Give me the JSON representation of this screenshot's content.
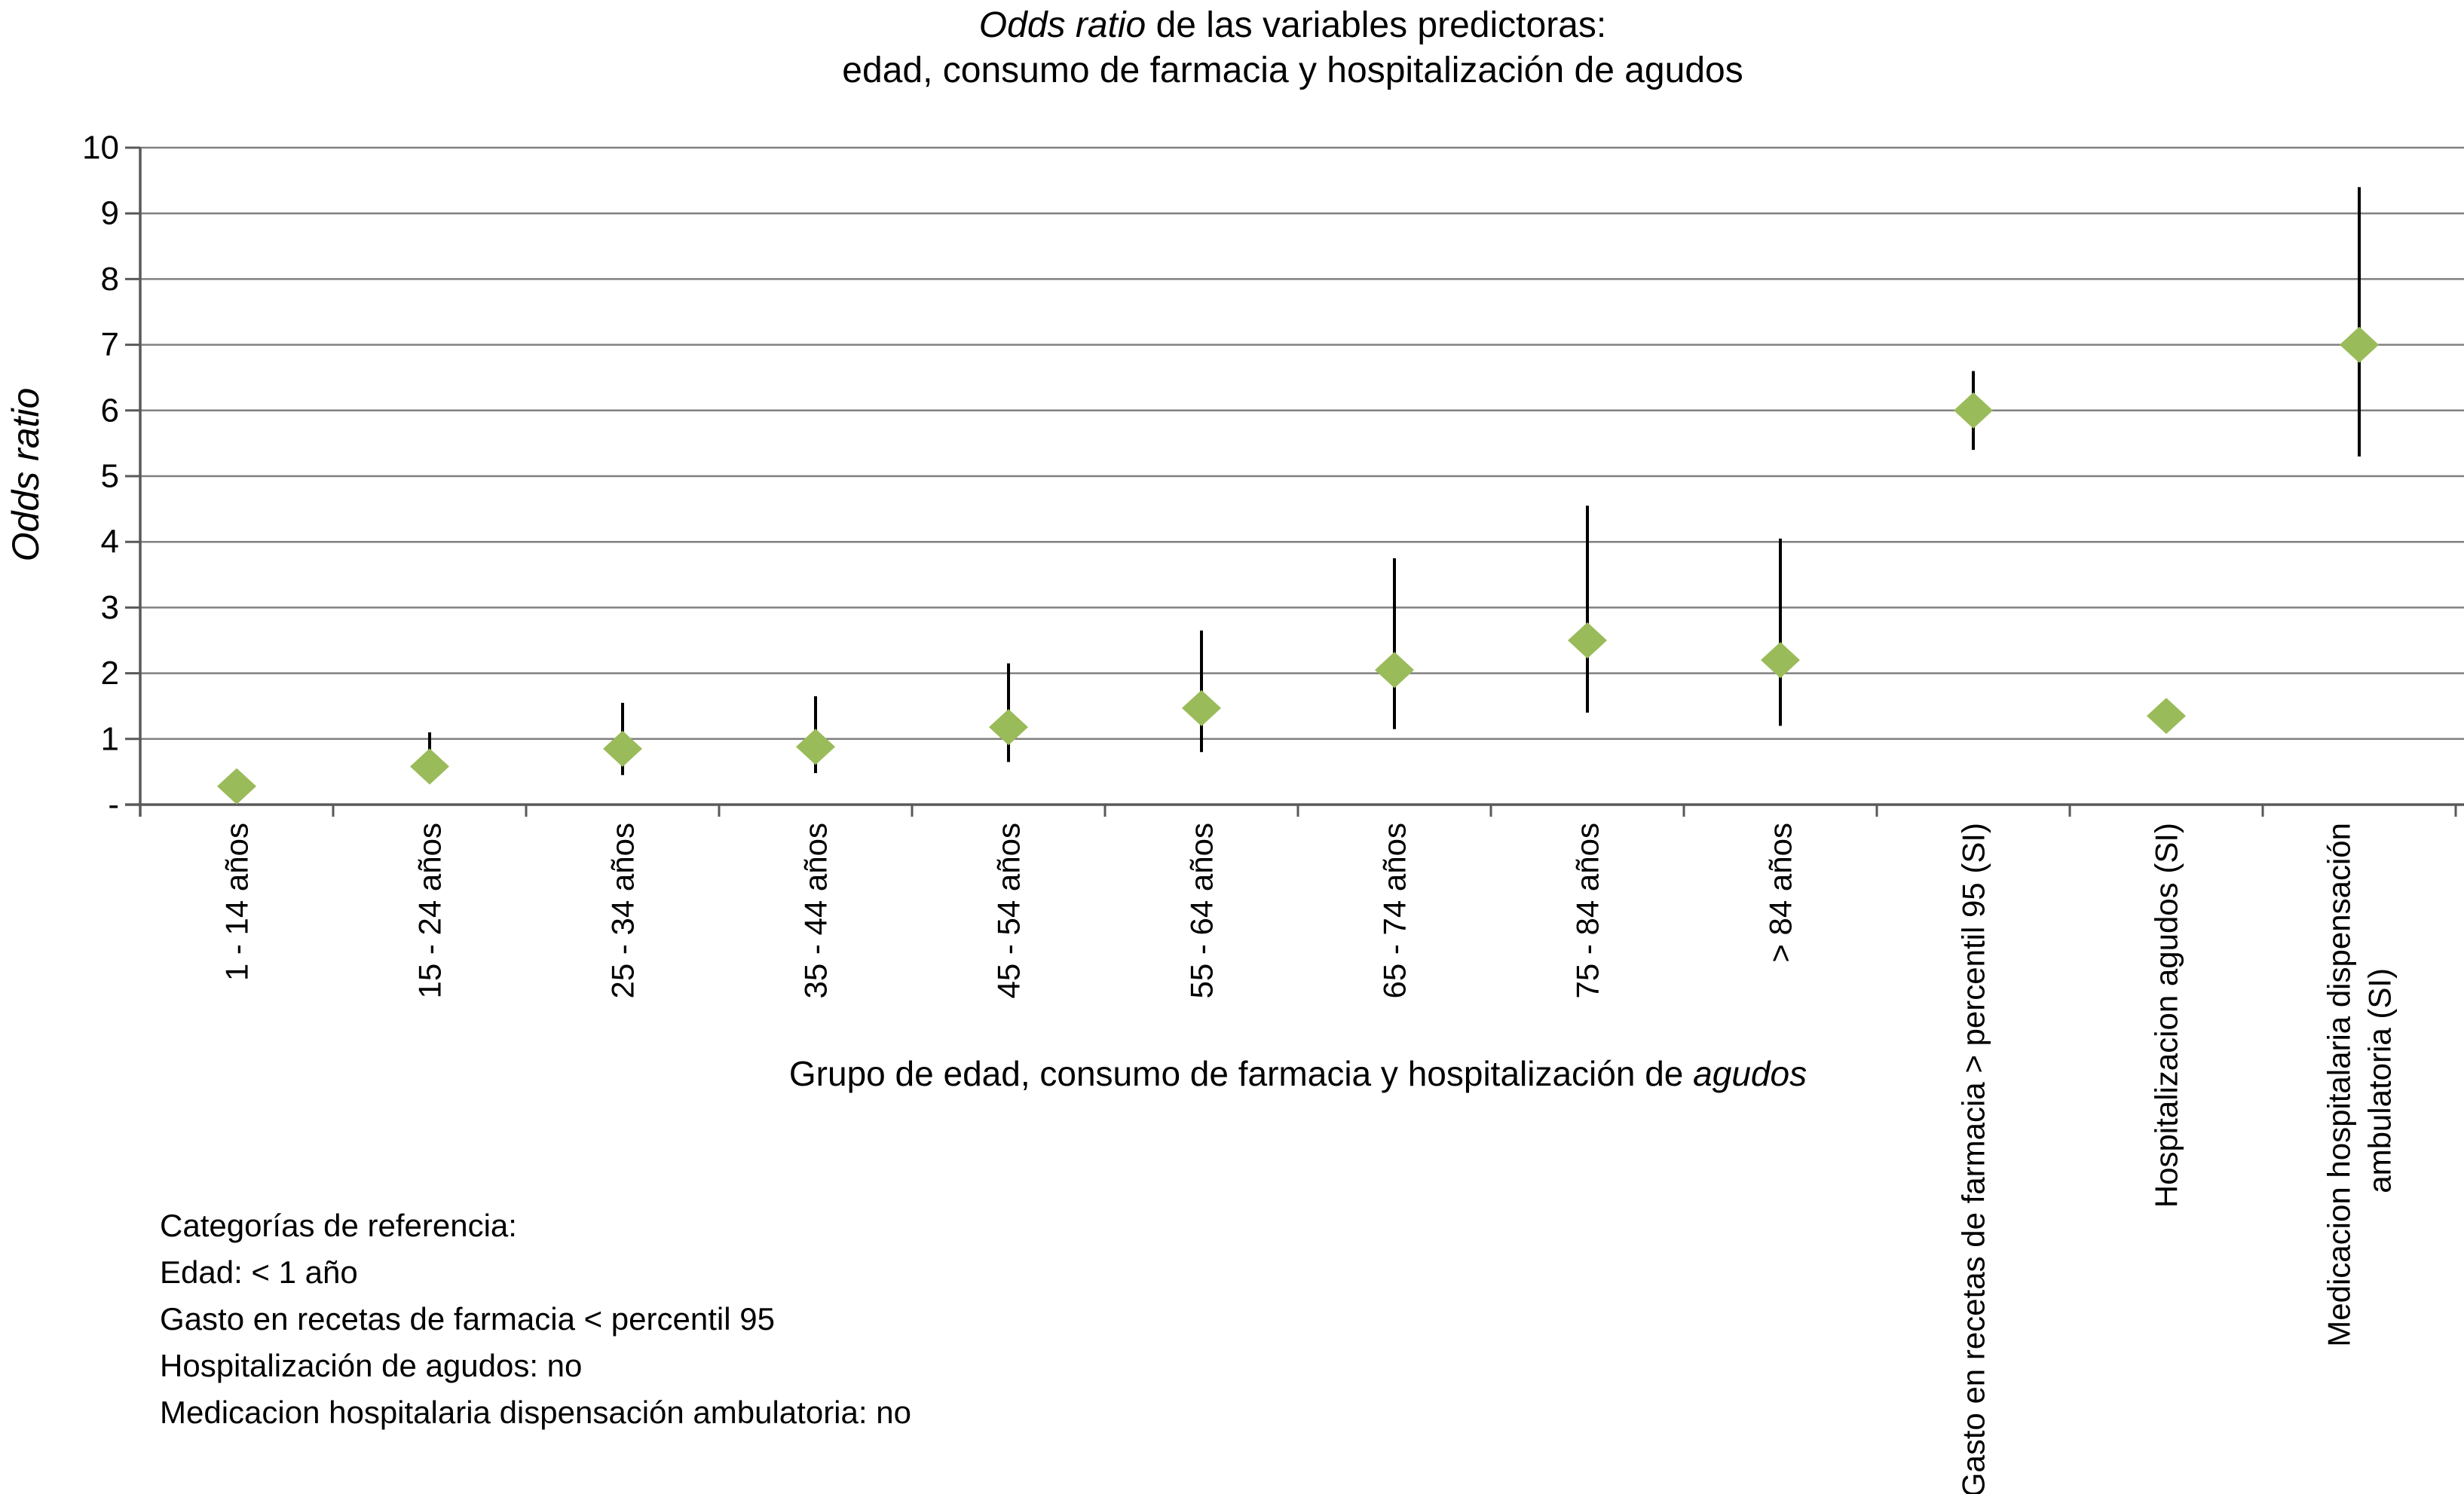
{
  "figure": {
    "title_line1_italic": "Odds ratio",
    "title_line1_rest": " de las variables predictoras:",
    "title_line2": "edad, consumo de farmacia y hospitalización de agudos",
    "y_axis_title": "Odds ratio",
    "x_axis_title_regular": "Grupo de edad, consumo de farmacia y hospitalización de ",
    "x_axis_title_italic": "agudos",
    "footnote_lines": [
      "Categorías de referencia:",
      "Edad: < 1 año",
      "Gasto en recetas de farmacia < percentil 95",
      "Hospitalización de agudos: no",
      "Medicacion hospitalaria dispensación ambulatoria: no"
    ]
  },
  "chart_data": {
    "type": "scatter",
    "marker": "diamond",
    "marker_color": "#9ABB59",
    "error_bar_color": "#000000",
    "gridline_color": "#808080",
    "axis_color": "#595959",
    "title": "Odds ratio de las variables predictoras: edad, consumo de farmacia y hospitalización de agudos",
    "xlabel": "Grupo de edad, consumo de farmacia y hospitalización de agudos",
    "ylabel": "Odds ratio",
    "ylim": [
      0,
      10
    ],
    "grid": true,
    "y_tick_values": [
      10,
      9,
      8,
      7,
      6,
      5,
      4,
      3,
      2,
      1,
      0
    ],
    "y_tick_labels": [
      "10",
      "9",
      "8",
      "7",
      "6",
      "5",
      "4",
      "3",
      "2",
      "1",
      "-"
    ],
    "categories": [
      "1 - 14 años",
      "15 - 24 años",
      "25 - 34 años",
      "35 - 44 años",
      "45 - 54 años",
      "55 - 64 años",
      "65 - 74 años",
      "75 - 84 años",
      "> 84 años",
      "Gasto en recetas de farmacia > percentil 95 (SI)",
      "Hospitalizacion agudos (SI)",
      "Medicacion hospitalaria dispensación\nambulatoria (SI)"
    ],
    "series": [
      {
        "name": "Odds ratio",
        "values": [
          0.28,
          0.58,
          0.85,
          0.88,
          1.18,
          1.47,
          2.05,
          2.5,
          2.2,
          6.0,
          1.35,
          7.0
        ],
        "ci_low": [
          null,
          null,
          0.45,
          0.48,
          0.65,
          0.8,
          1.15,
          1.4,
          1.2,
          5.4,
          null,
          5.3
        ],
        "ci_high": [
          null,
          1.1,
          1.55,
          1.65,
          2.15,
          2.65,
          3.75,
          4.55,
          4.05,
          6.6,
          null,
          9.4
        ]
      }
    ]
  }
}
